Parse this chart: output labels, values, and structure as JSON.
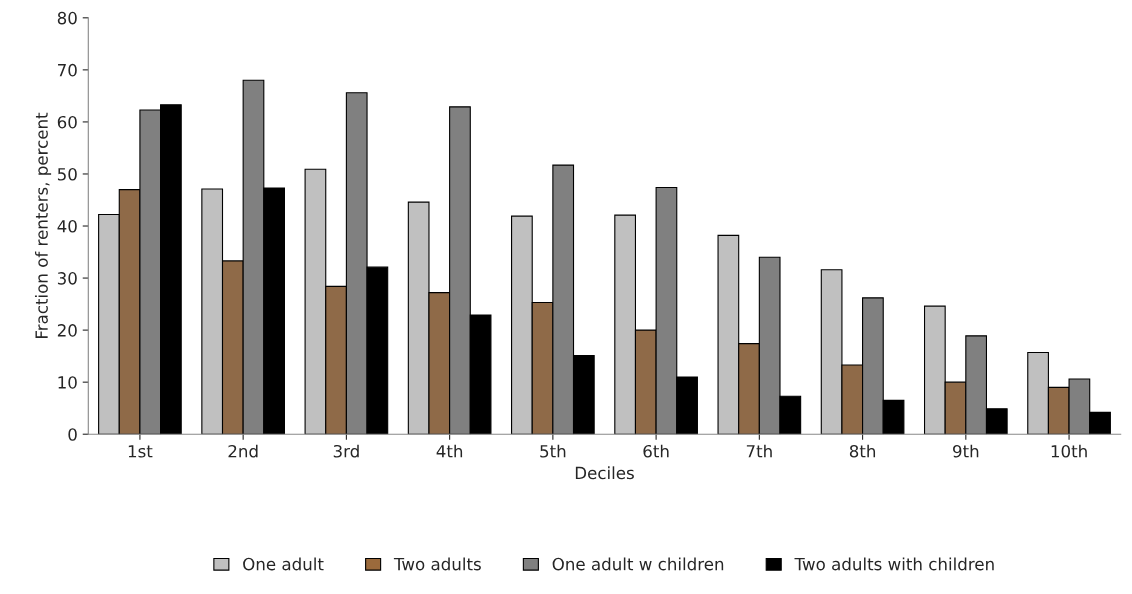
{
  "chart_data": {
    "type": "bar",
    "xlabel": "Deciles",
    "ylabel": "Fraction of renters, percent",
    "categories": [
      "1st",
      "2nd",
      "3rd",
      "4th",
      "5th",
      "6th",
      "7th",
      "8th",
      "9th",
      "10th"
    ],
    "series": [
      {
        "name": "One adult",
        "color": "#c0c0c0",
        "values": [
          42.2,
          47.1,
          50.9,
          44.6,
          41.9,
          42.1,
          38.2,
          31.6,
          24.6,
          15.7
        ]
      },
      {
        "name": "Two adults",
        "color": "#9b6a3c",
        "values": [
          47.0,
          33.3,
          28.4,
          27.2,
          25.3,
          20.0,
          17.4,
          13.3,
          10.0,
          9.0
        ]
      },
      {
        "name": "One adult w children",
        "color": "#808080",
        "values": [
          62.3,
          68.0,
          65.6,
          62.9,
          51.7,
          47.4,
          34.0,
          26.2,
          18.9,
          10.6
        ]
      },
      {
        "name": "Two adults with children",
        "color": "#000000",
        "values": [
          63.3,
          47.3,
          32.1,
          22.9,
          15.1,
          11.0,
          7.3,
          6.5,
          4.9,
          4.2
        ]
      }
    ],
    "ylim": [
      0,
      80
    ],
    "yticks": [
      0,
      10,
      20,
      30,
      40,
      50,
      60,
      70,
      80
    ],
    "grid": false,
    "legend": "bottom"
  }
}
